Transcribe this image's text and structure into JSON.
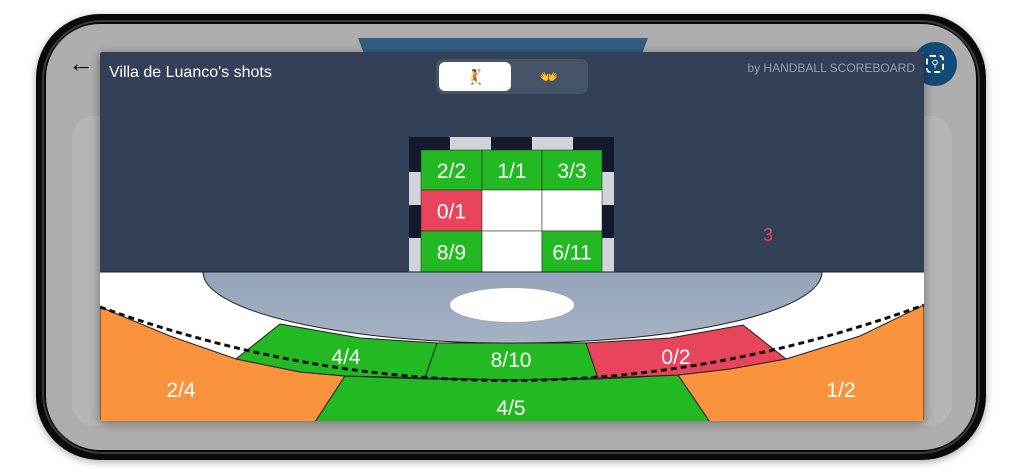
{
  "dialog": {
    "title": "Villa de Luanco's shots",
    "brand": "by HANDBALL SCOREBOARD",
    "toggle": [
      {
        "label": "🤾",
        "name": "shots",
        "selected": true
      },
      {
        "label": "👐",
        "name": "goalkeeper",
        "selected": false
      }
    ],
    "off_target_count": "3"
  },
  "colors": {
    "success": "#22b922",
    "fail": "#e8455c",
    "partial": "#fb923c",
    "panel": "#334057",
    "goal_area": "#9aa8bd"
  },
  "goal_cells": [
    {
      "row": 0,
      "col": 0,
      "value": "2/2",
      "color": "#22b922"
    },
    {
      "row": 0,
      "col": 1,
      "value": "1/1",
      "color": "#22b922"
    },
    {
      "row": 0,
      "col": 2,
      "value": "3/3",
      "color": "#22b922"
    },
    {
      "row": 1,
      "col": 0,
      "value": "0/1",
      "color": "#e8455c"
    },
    {
      "row": 1,
      "col": 1,
      "value": "",
      "color": "#ffffff"
    },
    {
      "row": 1,
      "col": 2,
      "value": "",
      "color": "#ffffff"
    },
    {
      "row": 2,
      "col": 0,
      "value": "8/9",
      "color": "#22b922"
    },
    {
      "row": 2,
      "col": 1,
      "value": "",
      "color": "#ffffff"
    },
    {
      "row": 2,
      "col": 2,
      "value": "6/11",
      "color": "#22b922"
    }
  ],
  "court_zones": {
    "six_left": "4/4",
    "six_center": "8/10",
    "six_right": "0/2",
    "nine_left": "2/4",
    "nine_center": "4/5",
    "nine_right": "1/2"
  },
  "app": {
    "back_icon": "arrow-left-icon",
    "fab_icon": "scan-search-icon"
  }
}
